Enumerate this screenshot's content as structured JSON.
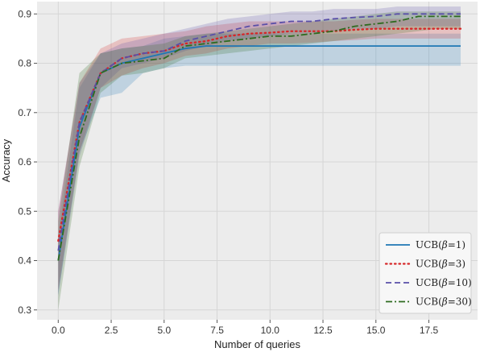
{
  "chart_data": {
    "type": "line",
    "xlabel": "Number of queries",
    "ylabel": "Accuracy",
    "xlim": [
      -1.0,
      19.8
    ],
    "ylim": [
      0.28,
      0.925
    ],
    "xticks": [
      0.0,
      2.5,
      5.0,
      7.5,
      10.0,
      12.5,
      15.0,
      17.5
    ],
    "xtick_labels": [
      "0.0",
      "2.5",
      "5.0",
      "7.5",
      "10.0",
      "12.5",
      "15.0",
      "17.5"
    ],
    "yticks": [
      0.3,
      0.4,
      0.5,
      0.6,
      0.7,
      0.8,
      0.9
    ],
    "ytick_labels": [
      "0.3",
      "0.4",
      "0.5",
      "0.6",
      "0.7",
      "0.8",
      "0.9"
    ],
    "grid": true,
    "legend_position": "bottom-right",
    "background": "#ececec",
    "x": [
      0,
      1,
      2,
      3,
      4,
      5,
      6,
      7,
      8,
      9,
      10,
      11,
      12,
      13,
      14,
      15,
      16,
      17,
      18,
      19
    ],
    "series": [
      {
        "name": "UCB(β=1)",
        "legend_prefix": "UCB(",
        "legend_greek": "β",
        "legend_suffix": "=1)",
        "color": "#1f77b4",
        "dash": "solid",
        "values": [
          0.4,
          0.67,
          0.78,
          0.8,
          0.81,
          0.82,
          0.83,
          0.835,
          0.835,
          0.835,
          0.835,
          0.835,
          0.835,
          0.835,
          0.835,
          0.835,
          0.835,
          0.835,
          0.835,
          0.835
        ],
        "lower": [
          0.33,
          0.62,
          0.73,
          0.74,
          0.78,
          0.79,
          0.795,
          0.795,
          0.795,
          0.795,
          0.795,
          0.795,
          0.795,
          0.795,
          0.795,
          0.795,
          0.795,
          0.795,
          0.795,
          0.795
        ],
        "upper": [
          0.45,
          0.75,
          0.82,
          0.83,
          0.835,
          0.85,
          0.855,
          0.86,
          0.86,
          0.86,
          0.86,
          0.86,
          0.86,
          0.86,
          0.86,
          0.86,
          0.86,
          0.86,
          0.86,
          0.86
        ]
      },
      {
        "name": "UCB(β=3)",
        "legend_prefix": "UCB(",
        "legend_greek": "β",
        "legend_suffix": "=3)",
        "color": "#d62728",
        "dash": "dotted",
        "values": [
          0.44,
          0.68,
          0.78,
          0.81,
          0.82,
          0.825,
          0.84,
          0.845,
          0.855,
          0.86,
          0.862,
          0.865,
          0.865,
          0.865,
          0.868,
          0.87,
          0.87,
          0.87,
          0.87,
          0.87
        ],
        "lower": [
          0.34,
          0.62,
          0.75,
          0.775,
          0.79,
          0.8,
          0.815,
          0.82,
          0.83,
          0.835,
          0.84,
          0.84,
          0.842,
          0.845,
          0.847,
          0.85,
          0.85,
          0.85,
          0.85,
          0.85
        ],
        "upper": [
          0.5,
          0.76,
          0.83,
          0.85,
          0.855,
          0.86,
          0.865,
          0.875,
          0.88,
          0.885,
          0.885,
          0.885,
          0.885,
          0.885,
          0.888,
          0.89,
          0.89,
          0.89,
          0.89,
          0.89
        ]
      },
      {
        "name": "UCB(β=10)",
        "legend_prefix": "UCB(",
        "legend_greek": "β",
        "legend_suffix": "=10)",
        "color": "#5a4fa8",
        "dash": "dashed",
        "values": [
          0.42,
          0.68,
          0.78,
          0.81,
          0.82,
          0.825,
          0.845,
          0.855,
          0.865,
          0.875,
          0.88,
          0.885,
          0.885,
          0.89,
          0.893,
          0.895,
          0.9,
          0.9,
          0.9,
          0.9
        ],
        "lower": [
          0.33,
          0.61,
          0.75,
          0.79,
          0.8,
          0.81,
          0.825,
          0.835,
          0.845,
          0.85,
          0.855,
          0.86,
          0.86,
          0.865,
          0.87,
          0.87,
          0.875,
          0.875,
          0.875,
          0.875
        ],
        "upper": [
          0.5,
          0.76,
          0.82,
          0.84,
          0.85,
          0.86,
          0.87,
          0.88,
          0.89,
          0.895,
          0.9,
          0.905,
          0.905,
          0.91,
          0.91,
          0.91,
          0.915,
          0.915,
          0.915,
          0.915
        ]
      },
      {
        "name": "UCB(β=30)",
        "legend_prefix": "UCB(",
        "legend_greek": "β",
        "legend_suffix": "=30)",
        "color": "#2e6b1f",
        "dash": "dashdot",
        "values": [
          0.4,
          0.65,
          0.78,
          0.8,
          0.805,
          0.81,
          0.835,
          0.84,
          0.845,
          0.85,
          0.855,
          0.855,
          0.86,
          0.865,
          0.875,
          0.88,
          0.885,
          0.895,
          0.895,
          0.895
        ],
        "lower": [
          0.3,
          0.59,
          0.74,
          0.775,
          0.78,
          0.79,
          0.81,
          0.815,
          0.82,
          0.825,
          0.83,
          0.835,
          0.84,
          0.845,
          0.85,
          0.855,
          0.86,
          0.865,
          0.87,
          0.87
        ],
        "upper": [
          0.48,
          0.78,
          0.82,
          0.83,
          0.835,
          0.84,
          0.855,
          0.86,
          0.865,
          0.87,
          0.875,
          0.88,
          0.885,
          0.89,
          0.895,
          0.9,
          0.905,
          0.905,
          0.905,
          0.905
        ]
      }
    ]
  }
}
